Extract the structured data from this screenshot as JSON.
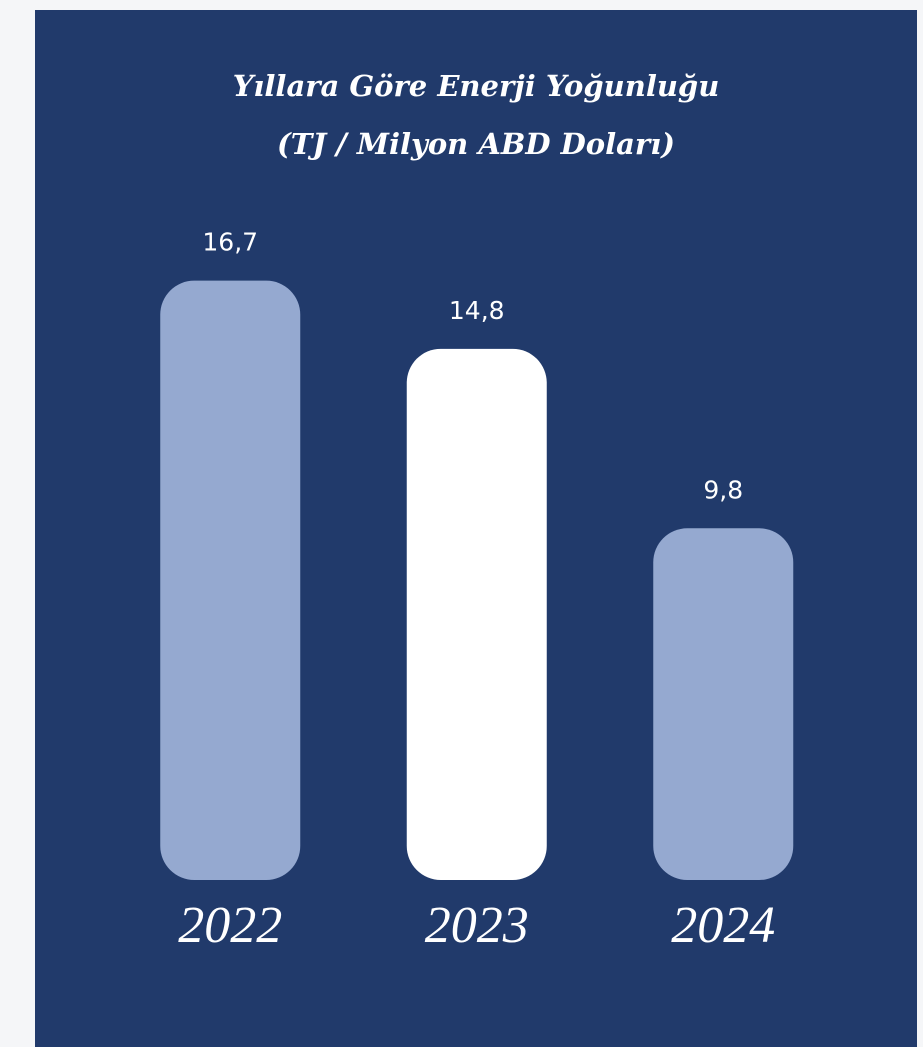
{
  "chart_data": {
    "type": "bar",
    "title": "Yıllara Göre Enerji Yoğunluğu",
    "subtitle": "(TJ / Milyon ABD Doları)",
    "categories": [
      "2022",
      "2023",
      "2024"
    ],
    "values": [
      16.7,
      14.8,
      9.8
    ],
    "value_labels": [
      "16,7",
      "14,8",
      "9,8"
    ],
    "colors": [
      "#95a9d0",
      "#ffffff",
      "#95a9d0"
    ],
    "ylim": [
      0,
      18
    ]
  }
}
